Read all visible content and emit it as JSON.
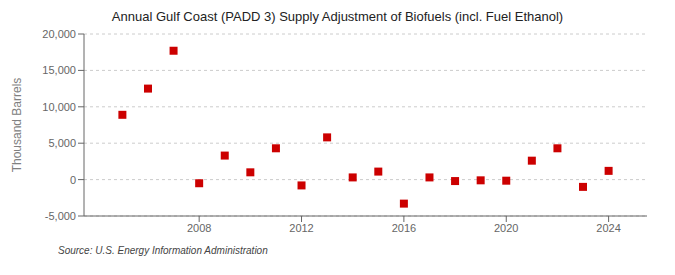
{
  "chart_data": {
    "type": "scatter",
    "title": "Annual Gulf Coast (PADD 3) Supply Adjustment of Biofuels (incl. Fuel Ethanol)",
    "ylabel": "Thousand Barrels",
    "annotations": [
      "Source: U.S. Energy Information Administration"
    ],
    "x": [
      2005,
      2006,
      2007,
      2008,
      2009,
      2010,
      2011,
      2012,
      2013,
      2014,
      2015,
      2016,
      2017,
      2018,
      2019,
      2020,
      2021,
      2022,
      2023,
      2024
    ],
    "values": [
      8900,
      12500,
      17700,
      -500,
      3300,
      1000,
      4300,
      -800,
      5800,
      300,
      1100,
      -3300,
      300,
      -200,
      -100,
      -150,
      2600,
      4300,
      -1000,
      1200
    ],
    "color": "#cc0000",
    "marker": "square",
    "ylim": [
      -5000,
      20000
    ],
    "yticks": [
      {
        "value": -5000,
        "label": "-5,000"
      },
      0,
      {
        "value": 5000,
        "label": "5,000"
      },
      {
        "value": 10000,
        "label": "10,000"
      },
      {
        "value": 15000,
        "label": "15,000"
      },
      {
        "value": 20000,
        "label": "20,000"
      }
    ],
    "xlim": [
      2003.5,
      2025.5
    ],
    "xticks": [
      2008,
      2012,
      2016,
      2020,
      2024
    ],
    "grid": true
  }
}
